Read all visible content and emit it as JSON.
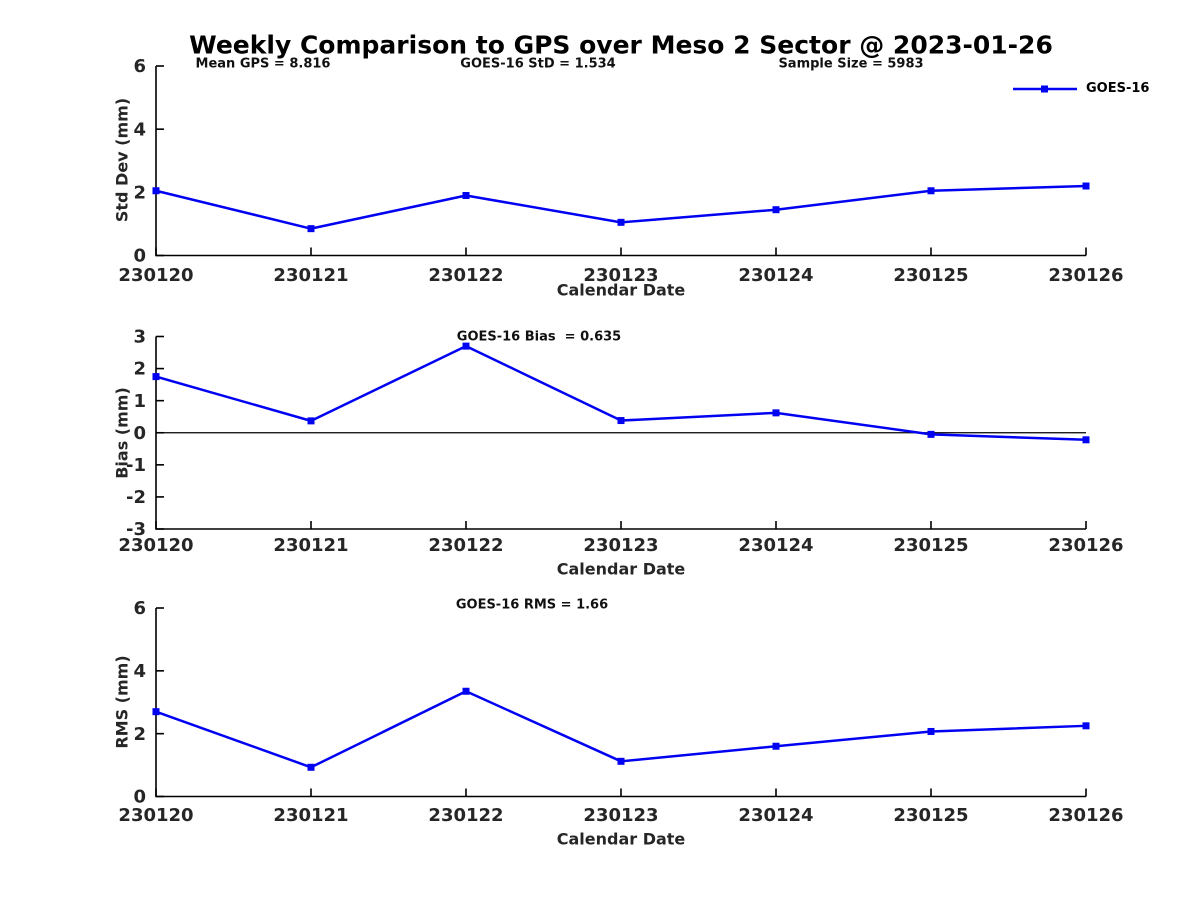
{
  "header": {
    "title": "Weekly Comparison to GPS over Meso 2 Sector @ 2023-01-26"
  },
  "stats": {
    "mean_gps": "Mean GPS = 8.816",
    "goes16_std": "GOES-16 StD = 1.534",
    "sample_size": "Sample Size = 5983"
  },
  "legend": {
    "label": "GOES-16"
  },
  "colors": {
    "series": "#0202f2",
    "axis": "#000000",
    "tick_text": "#262626",
    "zero_line": "#000000"
  },
  "chart_data": [
    {
      "type": "line",
      "title": "",
      "categories": [
        "230120",
        "230121",
        "230122",
        "230123",
        "230124",
        "230125",
        "230126"
      ],
      "series": [
        {
          "name": "GOES-16",
          "values": [
            2.05,
            0.85,
            1.9,
            1.05,
            1.45,
            2.05,
            2.2
          ]
        }
      ],
      "xlabel": "Calendar Date",
      "ylabel": "Std Dev (mm)",
      "ylim": [
        0,
        6
      ],
      "yticks": [
        0,
        2,
        4,
        6
      ],
      "grid": false,
      "legend_position": "top-right",
      "annotations": [
        "Mean GPS = 8.816",
        "GOES-16 StD = 1.534",
        "Sample Size = 5983"
      ]
    },
    {
      "type": "line",
      "title": "GOES-16 Bias  = 0.635",
      "categories": [
        "230120",
        "230121",
        "230122",
        "230123",
        "230124",
        "230125",
        "230126"
      ],
      "series": [
        {
          "name": "GOES-16",
          "values": [
            1.75,
            0.37,
            2.7,
            0.38,
            0.62,
            -0.05,
            -0.22
          ]
        }
      ],
      "xlabel": "Calendar Date",
      "ylabel": "Bias (mm)",
      "ylim": [
        -3,
        3
      ],
      "yticks": [
        -3,
        -2,
        -1,
        0,
        1,
        2,
        3
      ],
      "zero_line": true,
      "grid": false
    },
    {
      "type": "line",
      "title": "GOES-16 RMS = 1.66",
      "categories": [
        "230120",
        "230121",
        "230122",
        "230123",
        "230124",
        "230125",
        "230126"
      ],
      "series": [
        {
          "name": "GOES-16",
          "values": [
            2.7,
            0.93,
            3.35,
            1.12,
            1.6,
            2.07,
            2.25
          ]
        }
      ],
      "xlabel": "Calendar Date",
      "ylabel": "RMS (mm)",
      "ylim": [
        0,
        6
      ],
      "yticks": [
        0,
        2,
        4,
        6
      ],
      "grid": false
    }
  ]
}
